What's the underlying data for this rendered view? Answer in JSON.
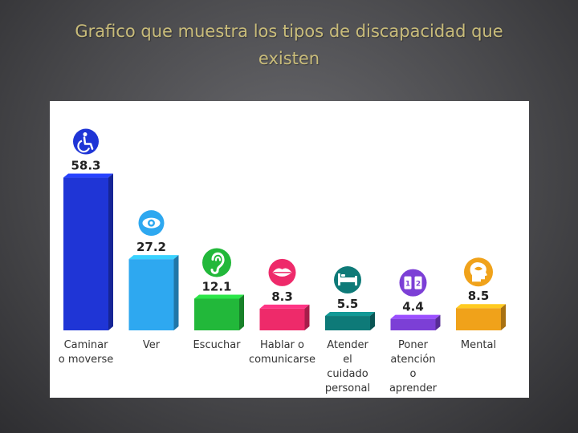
{
  "slide": {
    "title": "Grafico que muestra los tipos de discapacidad que existen"
  },
  "chart_data": {
    "type": "bar",
    "title": "",
    "xlabel": "",
    "ylabel": "",
    "ylim": [
      0,
      60
    ],
    "grid": false,
    "legend": "none",
    "categories": [
      [
        "Caminar",
        "o moverse"
      ],
      [
        "Ver"
      ],
      [
        "Escuchar"
      ],
      [
        "Hablar o",
        "comunicarse"
      ],
      [
        "Atender",
        "el",
        "cuidado",
        "personal"
      ],
      [
        "Poner",
        "atención",
        "o",
        "aprender"
      ],
      [
        "Mental"
      ]
    ],
    "values": [
      58.3,
      27.2,
      12.1,
      8.3,
      5.5,
      4.4,
      8.5
    ],
    "value_labels": [
      "58.3",
      "27.2",
      "12.1",
      "8.3",
      "5.5",
      "4.4",
      "8.5"
    ],
    "colors": [
      "#1f35d6",
      "#2ea8f0",
      "#22b83a",
      "#ee2a6a",
      "#0e7a78",
      "#7c3fd6",
      "#f0a21a"
    ],
    "icons": [
      "wheelchair-icon",
      "eye-icon",
      "ear-icon",
      "lips-icon",
      "bed-icon",
      "book-icon",
      "head-icon"
    ]
  }
}
